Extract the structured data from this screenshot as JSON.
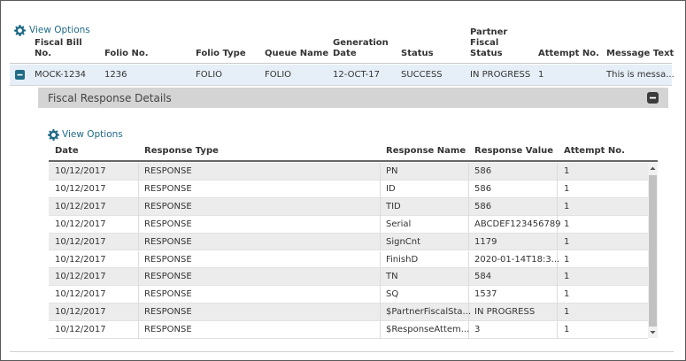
{
  "outer": {
    "view_options": "View Options",
    "columns": [
      "Fiscal Bill No.",
      "Folio No.",
      "Folio Type",
      "Queue Name",
      "Generation Date",
      "Status",
      "Partner Fiscal Status",
      "Attempt No.",
      "Message Text"
    ],
    "rows": [
      [
        "MOCK-1234",
        "1236",
        "FOLIO",
        "FOLIO",
        "12-OCT-17",
        "SUCCESS",
        "IN PROGRESS",
        "1",
        "This is messa..."
      ]
    ]
  },
  "details": {
    "title": "Fiscal Response Details",
    "view_options": "View Options",
    "columns": [
      "Date",
      "Response Type",
      "Response Name",
      "Response Value",
      "Attempt No."
    ],
    "rows": [
      [
        "10/12/2017",
        "RESPONSE",
        "PN",
        "586",
        "1"
      ],
      [
        "10/12/2017",
        "RESPONSE",
        "ID",
        "586",
        "1"
      ],
      [
        "10/12/2017",
        "RESPONSE",
        "TID",
        "586",
        "1"
      ],
      [
        "10/12/2017",
        "RESPONSE",
        "Serial",
        "ABCDEF123456789",
        "1"
      ],
      [
        "10/12/2017",
        "RESPONSE",
        "SignCnt",
        "1179",
        "1"
      ],
      [
        "10/12/2017",
        "RESPONSE",
        "FinishD",
        "2020-01-14T18:3...",
        "1"
      ],
      [
        "10/12/2017",
        "RESPONSE",
        "TN",
        "584",
        "1"
      ],
      [
        "10/12/2017",
        "RESPONSE",
        "SQ",
        "1537",
        "1"
      ],
      [
        "10/12/2017",
        "RESPONSE",
        "$PartnerFiscalSta...",
        "IN PROGRESS",
        "1"
      ],
      [
        "10/12/2017",
        "RESPONSE",
        "$ResponseAttem...",
        "3",
        "1"
      ]
    ]
  }
}
